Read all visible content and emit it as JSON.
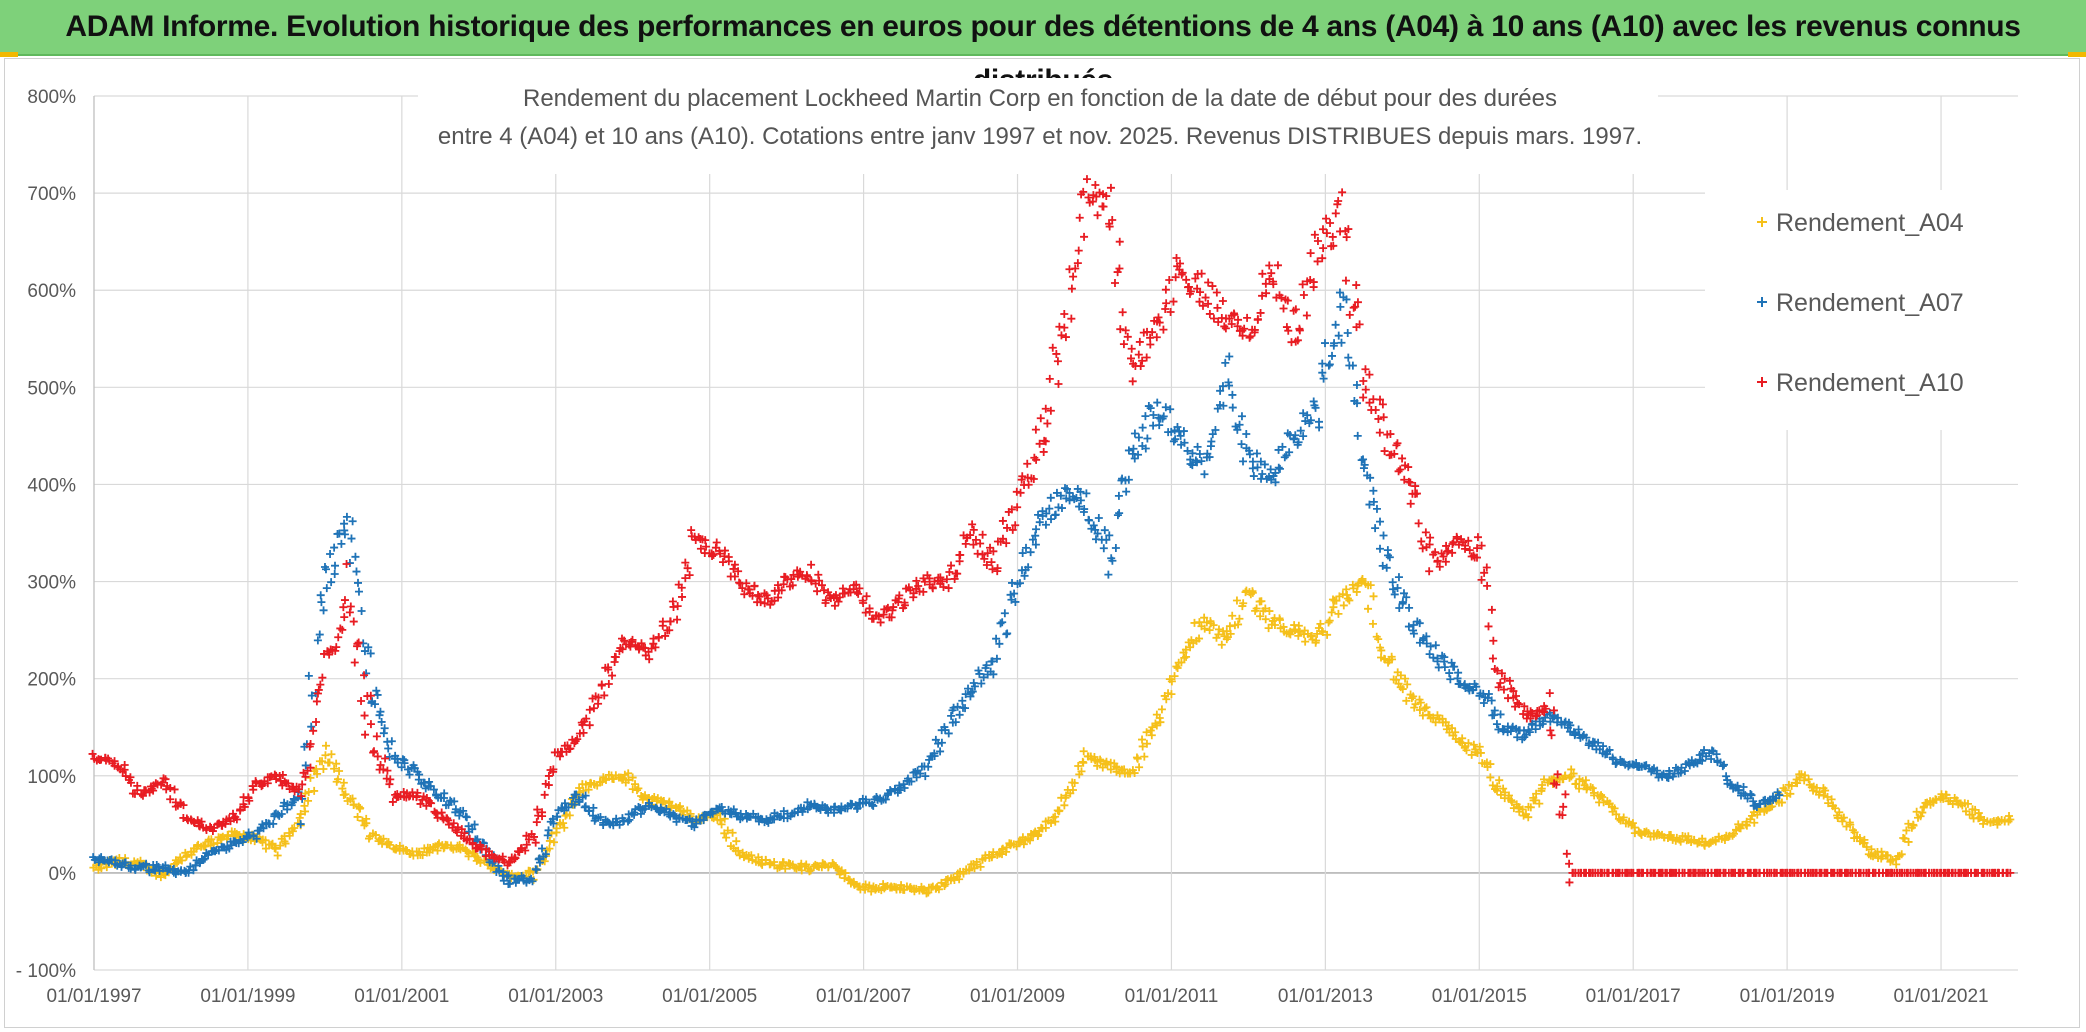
{
  "banner": {
    "title": "ADAM Informe. Evolution historique des performances en euros pour des détentions de 4 ans (A04) à 10 ans (A10) avec les revenus connus distribués"
  },
  "chart_data": {
    "type": "scatter",
    "title_line1": "Rendement du placement Lockheed Martin Corp en fonction de la date de début pour des durées",
    "title_line2": "entre 4 (A04) et 10 ans (A10). Cotations entre janv 1997 et nov. 2025. Revenus DISTRIBUES depuis mars. 1997.",
    "xlabel": "",
    "ylabel": "",
    "xlim": [
      1997.0,
      2022.0
    ],
    "ylim": [
      -100,
      800
    ],
    "y_ticks": [
      -100,
      0,
      100,
      200,
      300,
      400,
      500,
      600,
      700,
      800
    ],
    "y_tick_labels": [
      "- 100%",
      "0%",
      "100%",
      "200%",
      "300%",
      "400%",
      "500%",
      "600%",
      "700%",
      "800%"
    ],
    "x_ticks": [
      1997,
      1999,
      2001,
      2003,
      2005,
      2007,
      2009,
      2011,
      2013,
      2015,
      2017,
      2019,
      2021
    ],
    "x_tick_labels": [
      "01/01/1997",
      "01/01/1999",
      "01/01/2001",
      "01/01/2003",
      "01/01/2005",
      "01/01/2007",
      "01/01/2009",
      "01/01/2011",
      "01/01/2013",
      "01/01/2015",
      "01/01/2017",
      "01/01/2019",
      "01/01/2021"
    ],
    "grid": true,
    "legend_position": "top-right",
    "series": [
      {
        "name": "Rendement_A04",
        "color": "#f5c01a",
        "x": [
          1997.0,
          1997.3,
          1997.6,
          1997.9,
          1998.2,
          1998.5,
          1998.8,
          1999.1,
          1999.4,
          1999.7,
          2000.0,
          2000.3,
          2000.6,
          2000.9,
          2001.2,
          2001.5,
          2001.8,
          2002.1,
          2002.4,
          2002.7,
          2003.0,
          2003.3,
          2003.6,
          2003.9,
          2004.2,
          2004.5,
          2004.8,
          2005.1,
          2005.4,
          2005.7,
          2006.0,
          2006.3,
          2006.6,
          2006.9,
          2007.2,
          2007.5,
          2007.8,
          2008.1,
          2008.4,
          2008.7,
          2009.0,
          2009.3,
          2009.6,
          2009.9,
          2010.2,
          2010.5,
          2010.8,
          2011.1,
          2011.4,
          2011.7,
          2012.0,
          2012.3,
          2012.6,
          2012.9,
          2013.2,
          2013.5,
          2013.8,
          2014.1,
          2014.4,
          2014.7,
          2015.0,
          2015.3,
          2015.6,
          2015.9,
          2016.2,
          2016.5,
          2016.8,
          2017.1,
          2017.4,
          2017.7,
          2018.0,
          2018.3,
          2018.6,
          2018.9,
          2019.2,
          2019.5,
          2019.8,
          2020.1,
          2020.4,
          2020.7,
          2021.0,
          2021.3,
          2021.6,
          2021.9
        ],
        "y": [
          5,
          12,
          8,
          -2,
          20,
          30,
          40,
          35,
          25,
          60,
          125,
          80,
          40,
          25,
          20,
          28,
          25,
          10,
          -5,
          0,
          40,
          85,
          95,
          100,
          75,
          70,
          55,
          60,
          20,
          10,
          8,
          5,
          10,
          -15,
          -15,
          -15,
          -18,
          -10,
          5,
          20,
          30,
          40,
          75,
          120,
          110,
          100,
          160,
          210,
          260,
          240,
          290,
          260,
          250,
          240,
          280,
          300,
          220,
          180,
          160,
          140,
          120,
          80,
          60,
          95,
          100,
          80,
          60,
          40,
          38,
          35,
          30,
          40,
          60,
          75,
          100,
          80,
          50,
          20,
          15,
          60,
          80,
          70,
          50,
          55
        ]
      },
      {
        "name": "Rendement_A07",
        "color": "#1f73b7",
        "x": [
          1997.0,
          1997.3,
          1997.6,
          1997.9,
          1998.2,
          1998.5,
          1998.8,
          1999.1,
          1999.4,
          1999.7,
          2000.0,
          2000.3,
          2000.6,
          2000.9,
          2001.2,
          2001.5,
          2001.8,
          2002.1,
          2002.4,
          2002.7,
          2003.0,
          2003.3,
          2003.6,
          2003.9,
          2004.2,
          2004.5,
          2004.8,
          2005.1,
          2005.4,
          2005.7,
          2006.0,
          2006.3,
          2006.6,
          2006.9,
          2007.2,
          2007.5,
          2007.8,
          2008.1,
          2008.4,
          2008.7,
          2009.0,
          2009.3,
          2009.6,
          2009.9,
          2010.2,
          2010.5,
          2010.8,
          2011.1,
          2011.4,
          2011.7,
          2012.0,
          2012.3,
          2012.6,
          2012.9,
          2013.2,
          2013.5,
          2013.8,
          2014.1,
          2014.4,
          2014.7,
          2015.0,
          2015.3,
          2015.6,
          2015.9,
          2016.2,
          2016.5,
          2016.8,
          2017.1,
          2017.4,
          2017.7,
          2018.0,
          2018.3,
          2018.6,
          2018.9
        ],
        "y": [
          15,
          10,
          5,
          5,
          0,
          20,
          30,
          40,
          60,
          85,
          300,
          360,
          190,
          120,
          100,
          80,
          60,
          20,
          -10,
          -5,
          60,
          80,
          50,
          55,
          70,
          60,
          50,
          65,
          60,
          55,
          60,
          70,
          65,
          70,
          75,
          90,
          110,
          150,
          190,
          220,
          300,
          360,
          390,
          380,
          330,
          430,
          480,
          450,
          420,
          520,
          430,
          400,
          450,
          480,
          590,
          420,
          320,
          260,
          230,
          200,
          190,
          150,
          140,
          160,
          150,
          130,
          115,
          110,
          100,
          110,
          125,
          90,
          70,
          80
        ]
      },
      {
        "name": "Rendement_A10",
        "color": "#e81c22",
        "x": [
          1997.0,
          1997.3,
          1997.6,
          1997.9,
          1998.2,
          1998.5,
          1998.8,
          1999.1,
          1999.4,
          1999.7,
          2000.0,
          2000.3,
          2000.6,
          2000.9,
          2001.2,
          2001.5,
          2001.8,
          2002.1,
          2002.4,
          2002.7,
          2003.0,
          2003.3,
          2003.6,
          2003.9,
          2004.2,
          2004.5,
          2004.8,
          2005.1,
          2005.4,
          2005.7,
          2006.0,
          2006.3,
          2006.6,
          2006.9,
          2007.2,
          2007.5,
          2007.8,
          2008.1,
          2008.4,
          2008.7,
          2009.0,
          2009.3,
          2009.6,
          2009.9,
          2010.2,
          2010.5,
          2010.8,
          2011.1,
          2011.4,
          2011.7,
          2012.0,
          2012.3,
          2012.6,
          2012.9,
          2013.2,
          2013.5,
          2013.8,
          2014.1,
          2014.4,
          2014.7,
          2015.0,
          2015.3,
          2015.6,
          2015.9,
          2016.2,
          2016.5,
          2016.8,
          2017.1,
          2017.4,
          2017.7,
          2018.0,
          2018.3,
          2018.6,
          2018.9,
          2019.2,
          2019.5,
          2019.8,
          2020.1,
          2020.4,
          2020.7,
          2021.0,
          2021.3,
          2021.6,
          2021.9
        ],
        "y": [
          120,
          115,
          80,
          95,
          60,
          45,
          55,
          90,
          100,
          80,
          210,
          290,
          140,
          80,
          80,
          60,
          40,
          20,
          10,
          40,
          120,
          140,
          190,
          240,
          230,
          260,
          340,
          330,
          300,
          280,
          300,
          310,
          280,
          290,
          260,
          280,
          300,
          300,
          350,
          320,
          380,
          450,
          560,
          700,
          680,
          520,
          560,
          620,
          600,
          570,
          560,
          620,
          560,
          640,
          680,
          520,
          450,
          400,
          320,
          340,
          330,
          200,
          160,
          170,
          0,
          0,
          0,
          0,
          0,
          0,
          0,
          0,
          0,
          0,
          0,
          0,
          0,
          0,
          0,
          0,
          0,
          0,
          0,
          0
        ]
      }
    ]
  }
}
